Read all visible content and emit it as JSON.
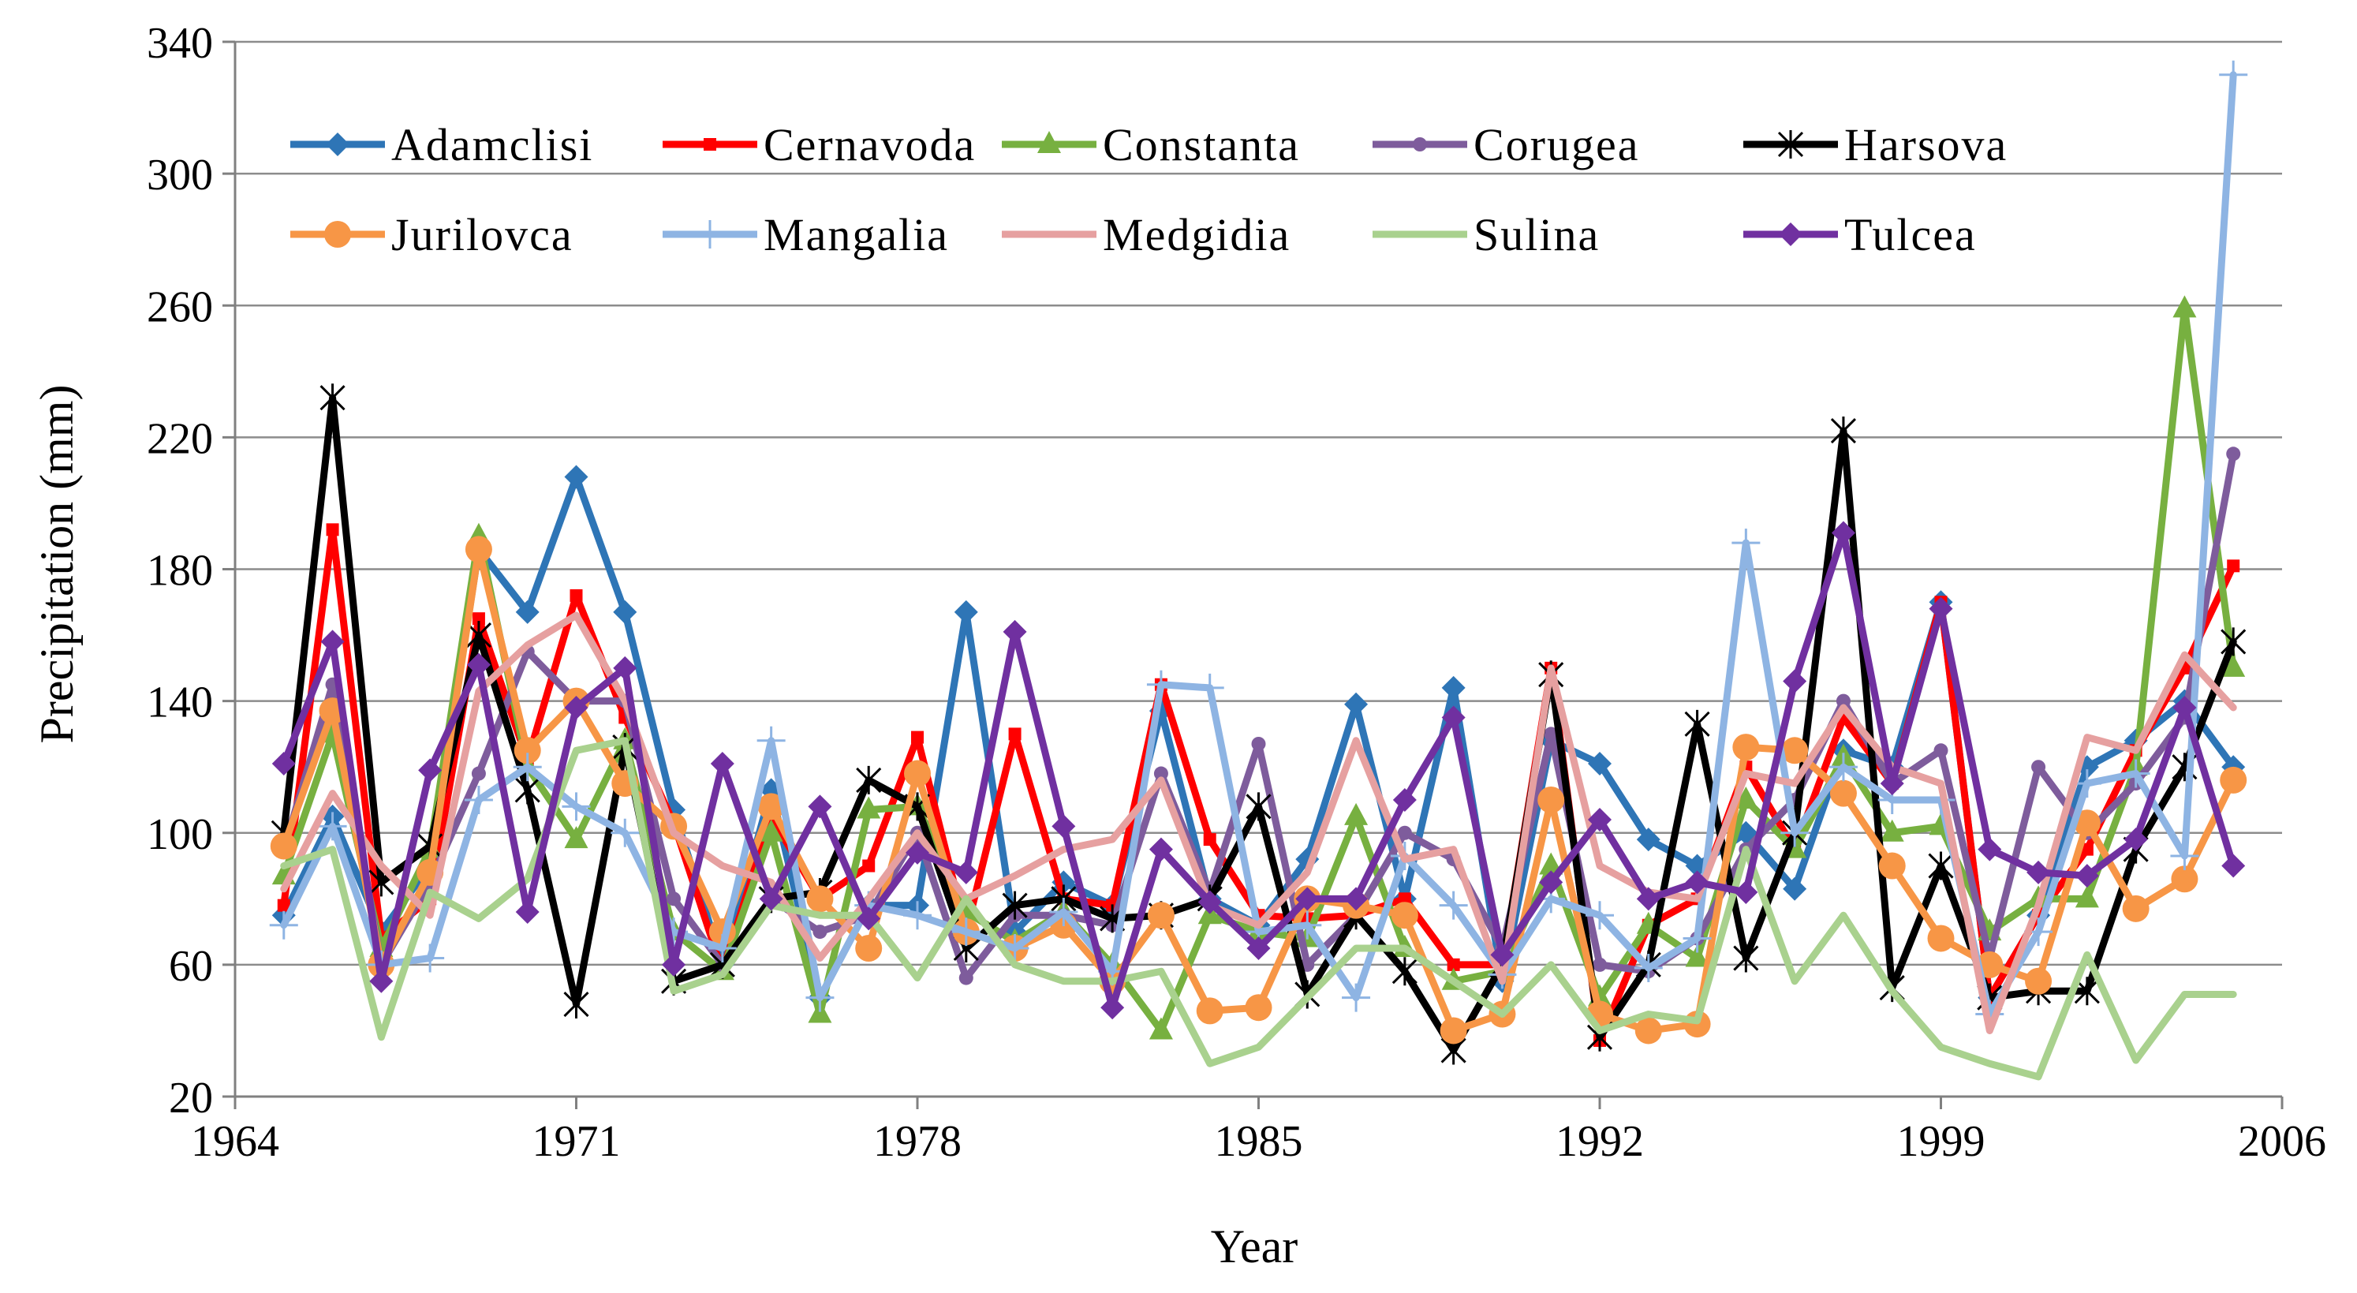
{
  "chart_data": {
    "type": "line",
    "title": "",
    "xlabel": "Year",
    "ylabel": "Precipitation (mm)",
    "xlim": [
      1964,
      2006
    ],
    "ylim": [
      20,
      340
    ],
    "xticks": [
      1964,
      1971,
      1978,
      1985,
      1992,
      1999,
      2006
    ],
    "yticks": [
      20,
      60,
      100,
      140,
      180,
      220,
      260,
      300,
      340
    ],
    "grid": "horizontal",
    "legend_position": "top",
    "x": [
      1965,
      1966,
      1967,
      1968,
      1969,
      1970,
      1971,
      1972,
      1973,
      1974,
      1975,
      1976,
      1977,
      1978,
      1979,
      1980,
      1981,
      1982,
      1983,
      1984,
      1985,
      1986,
      1987,
      1988,
      1989,
      1990,
      1991,
      1992,
      1993,
      1994,
      1995,
      1996,
      1997,
      1998,
      1999,
      2000,
      2001,
      2002,
      2003,
      2004,
      2005
    ],
    "series": [
      {
        "name": "Adamclisi",
        "color": "#2E75B6",
        "marker": "diamond",
        "values": [
          75,
          105,
          70,
          90,
          186,
          167,
          208,
          167,
          107,
          60,
          113,
          50,
          78,
          78,
          167,
          70,
          85,
          78,
          137,
          80,
          72,
          92,
          139,
          80,
          144,
          55,
          128,
          121,
          98,
          90,
          100,
          83,
          125,
          120,
          170,
          50,
          75,
          120,
          128,
          140,
          120
        ]
      },
      {
        "name": "Cernavoda",
        "color": "#FF0000",
        "marker": "square",
        "values": [
          78,
          192,
          68,
          80,
          165,
          122,
          172,
          135,
          103,
          58,
          105,
          80,
          90,
          129,
          70,
          130,
          80,
          78,
          145,
          98,
          75,
          74,
          75,
          80,
          60,
          60,
          150,
          37,
          72,
          80,
          120,
          95,
          135,
          115,
          170,
          50,
          75,
          95,
          125,
          150,
          181
        ]
      },
      {
        "name": "Constanta",
        "color": "#77B040",
        "marker": "triangle",
        "values": [
          87,
          130,
          65,
          95,
          190,
          120,
          98,
          128,
          70,
          58,
          100,
          45,
          107,
          108,
          76,
          67,
          76,
          60,
          40,
          75,
          70,
          68,
          105,
          65,
          55,
          58,
          90,
          50,
          72,
          62,
          110,
          95,
          123,
          100,
          102,
          70,
          80,
          80,
          120,
          259,
          150
        ]
      },
      {
        "name": "Corugea",
        "color": "#7E5C9C",
        "marker": "circle",
        "values": [
          95,
          145,
          60,
          85,
          118,
          155,
          140,
          140,
          80,
          60,
          80,
          70,
          75,
          100,
          56,
          75,
          75,
          72,
          118,
          82,
          127,
          60,
          75,
          100,
          92,
          65,
          130,
          60,
          58,
          68,
          95,
          110,
          140,
          115,
          125,
          62,
          120,
          100,
          115,
          135,
          215
        ]
      },
      {
        "name": "Harsova",
        "color": "#000000",
        "marker": "asterisk",
        "values": [
          100,
          232,
          85,
          96,
          160,
          113,
          48,
          126,
          55,
          60,
          80,
          82,
          116,
          108,
          65,
          78,
          80,
          74,
          75,
          80,
          108,
          51,
          75,
          58,
          34,
          60,
          148,
          38,
          60,
          133,
          62,
          100,
          222,
          53,
          90,
          50,
          52,
          52,
          95,
          120,
          158
        ]
      },
      {
        "name": "Jurilovca",
        "color": "#F79646",
        "marker": "dot",
        "values": [
          96,
          137,
          60,
          88,
          186,
          125,
          140,
          115,
          102,
          70,
          108,
          80,
          65,
          118,
          70,
          65,
          72,
          55,
          75,
          46,
          47,
          80,
          78,
          75,
          40,
          45,
          110,
          45,
          40,
          42,
          126,
          125,
          112,
          90,
          68,
          60,
          55,
          103,
          77,
          86,
          116
        ]
      },
      {
        "name": "Mangalia",
        "color": "#8EB4E3",
        "marker": "plus",
        "values": [
          72,
          102,
          60,
          62,
          110,
          120,
          108,
          100,
          70,
          65,
          128,
          50,
          78,
          75,
          70,
          65,
          76,
          58,
          145,
          144,
          70,
          72,
          50,
          93,
          78,
          57,
          80,
          75,
          59,
          68,
          188,
          100,
          120,
          110,
          110,
          45,
          70,
          115,
          118,
          93,
          330
        ]
      },
      {
        "name": "Medgidia",
        "color": "#E6A0A0",
        "marker": "none",
        "values": [
          83,
          112,
          90,
          75,
          143,
          157,
          166,
          140,
          100,
          90,
          85,
          62,
          80,
          100,
          80,
          87,
          95,
          98,
          116,
          78,
          72,
          88,
          128,
          92,
          95,
          55,
          150,
          90,
          82,
          80,
          118,
          115,
          138,
          120,
          115,
          40,
          78,
          129,
          125,
          154,
          138
        ]
      },
      {
        "name": "Sulina",
        "color": "#A9D18E",
        "marker": "none",
        "values": [
          90,
          95,
          38,
          82,
          74,
          86,
          125,
          128,
          52,
          57,
          78,
          75,
          75,
          56,
          80,
          60,
          55,
          55,
          58,
          30,
          35,
          50,
          65,
          65,
          55,
          45,
          60,
          40,
          45,
          43,
          95,
          55,
          75,
          52,
          35,
          30,
          26,
          63,
          31,
          51,
          51
        ]
      },
      {
        "name": "Tulcea",
        "color": "#7030A0",
        "marker": "diamond",
        "values": [
          121,
          158,
          55,
          119,
          151,
          76,
          138,
          150,
          60,
          121,
          80,
          108,
          74,
          94,
          88,
          161,
          102,
          47,
          95,
          79,
          65,
          80,
          80,
          110,
          135,
          63,
          85,
          104,
          80,
          85,
          82,
          146,
          191,
          115,
          168,
          95,
          88,
          87,
          98,
          138,
          90
        ]
      }
    ]
  }
}
